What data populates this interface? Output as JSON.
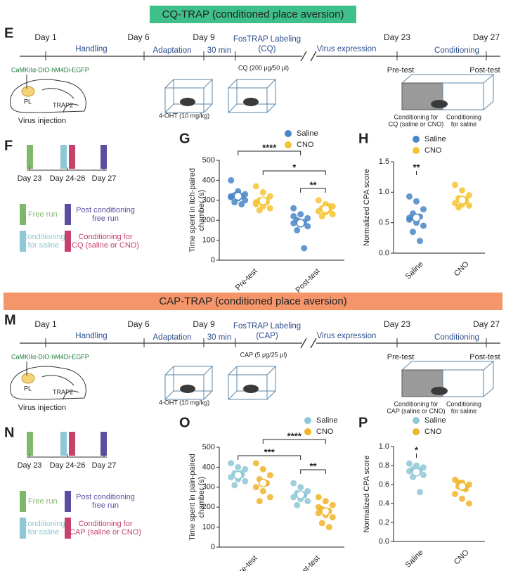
{
  "sections": [
    {
      "banner": "CQ-TRAP (conditioned place aversion)",
      "timeline": {
        "label": "E",
        "days": [
          "Day 1",
          "Day 6",
          "Day 9",
          "Day 23",
          "Day 27"
        ],
        "phases": [
          "Handling",
          "Adaptation",
          "30 min",
          "FosTRAP Labeling",
          "(CQ)",
          "Virus expression",
          "Conditioning"
        ],
        "construct": "CaMKIIα-DIO-hM4Di-EGFP",
        "region": "PL",
        "mouse": "TRAP2",
        "injection": "Virus injection",
        "drug1": "4-OHT (10 mg/kg)",
        "drug2": "CQ (200 μg/50 μl)",
        "pretest": "Pre-test",
        "posttest": "Post-test",
        "cond1": [
          "Conditioning for",
          "CQ (saline or CNO)"
        ],
        "cond2": [
          "Conditioning",
          "for saline"
        ]
      },
      "schedule": {
        "label": "F",
        "days": [
          "Day 23",
          "Day 24-26",
          "Day 27"
        ],
        "legend": [
          [
            "Free run"
          ],
          [
            "Post conditioning",
            "free run"
          ],
          [
            "Conditioning",
            "for saline"
          ],
          [
            "Conditioning for",
            "CQ (saline or CNO)"
          ]
        ]
      }
    },
    {
      "banner": "CAP-TRAP (conditioned place aversion)",
      "timeline": {
        "label": "M",
        "days": [
          "Day 1",
          "Day 6",
          "Day 9",
          "Day 23",
          "Day 27"
        ],
        "phases": [
          "Handling",
          "Adaptation",
          "30 min",
          "FosTRAP Labeling",
          "(CAP)",
          "Virus expression",
          "Conditioning"
        ],
        "construct": "CaMKIIα-DIO-hM4Di-EGFP",
        "region": "PL",
        "mouse": "TRAP2",
        "injection": "Virus injection",
        "drug1": "4-OHT (10 mg/kg)",
        "drug2": "CAP (5 μg/25 μl)",
        "pretest": "Pre-test",
        "posttest": "Post-test",
        "cond1": [
          "Conditioning for",
          "CAP (saline or CNO)"
        ],
        "cond2": [
          "Conditioning",
          "for saline"
        ]
      },
      "schedule": {
        "label": "N",
        "days": [
          "Day 23",
          "Day 24-26",
          "Day 27"
        ],
        "legend": [
          [
            "Free run"
          ],
          [
            "Post conditioning",
            "free run"
          ],
          [
            "Conditioning",
            "for saline"
          ],
          [
            "Conditioning for",
            "CAP (saline or CNO)"
          ]
        ]
      }
    }
  ],
  "chart_data": [
    {
      "type": "strip",
      "label": "G",
      "y_label": [
        "Time spent in itch-paired",
        "chamber (s)"
      ],
      "categories": [
        "Pre-test",
        "Post-test"
      ],
      "ylim": [
        0,
        500
      ],
      "yticks": [
        0,
        100,
        200,
        300,
        400,
        500
      ],
      "series": [
        {
          "name": "Saline",
          "color": "#4a86c5",
          "values": [
            [
              400,
              345,
              330,
              325,
              320,
              315,
              310,
              300,
              290,
              280,
              320,
              330
            ],
            [
              260,
              230,
              210,
              200,
              190,
              185,
              180,
              170,
              150,
              60,
              220
            ]
          ],
          "means": [
            320,
            186
          ]
        },
        {
          "name": "CNO",
          "color": "#f4c430",
          "values": [
            [
              370,
              340,
              320,
              300,
              290,
              280,
              270,
              260,
              250,
              300,
              290
            ],
            [
              300,
              280,
              270,
              260,
              250,
              245,
              240,
              230,
              220,
              270
            ]
          ],
          "means": [
            297,
            256
          ]
        }
      ],
      "annotations": [
        "****",
        "*",
        "**"
      ]
    },
    {
      "type": "strip",
      "label": "H",
      "y_label": [
        "Normalized CPA score"
      ],
      "categories": [
        "Saline",
        "CNO"
      ],
      "ylim": [
        0,
        1.5
      ],
      "yticks": [
        {
          "value": 0,
          "label": "0.0"
        },
        {
          "value": 0.5,
          "label": "0.5"
        },
        {
          "value": 1,
          "label": "1.0"
        },
        {
          "value": 1.5,
          "label": "1.5"
        }
      ],
      "series": [
        {
          "name": "Saline",
          "color": "#4a86c5",
          "values": [
            [
              0.93,
              0.85,
              0.72,
              0.65,
              0.6,
              0.55,
              0.5,
              0.45,
              0.35,
              0.2,
              0.58
            ]
          ],
          "means": [
            0.58
          ]
        },
        {
          "name": "CNO",
          "color": "#f4c430",
          "values": [
            [
              1.12,
              1.03,
              0.95,
              0.9,
              0.85,
              0.82,
              0.8,
              0.78,
              0.75,
              0.88
            ]
          ],
          "means": [
            0.87
          ]
        }
      ],
      "annotations": [
        "**"
      ]
    },
    {
      "type": "strip",
      "label": "O",
      "y_label": [
        "Time spent in pain-paired",
        "chamber (s)"
      ],
      "categories": [
        "Pre-test",
        "ost-test"
      ],
      "ylim": [
        0,
        500
      ],
      "yticks": [
        0,
        100,
        200,
        300,
        400,
        500
      ],
      "series": [
        {
          "name": "Saline",
          "color": "#8fc7d6",
          "values": [
            [
              420,
              400,
              390,
              370,
              360,
              350,
              340,
              330,
              310,
              370
            ],
            [
              320,
              300,
              280,
              270,
              260,
              250,
              240,
              230,
              210,
              260
            ]
          ],
          "means": [
            360,
            262
          ]
        },
        {
          "name": "CNO",
          "color": "#f0b429",
          "values": [
            [
              420,
              390,
              360,
              340,
              320,
              300,
              280,
              250,
              230,
              320
            ],
            [
              250,
              230,
              210,
              190,
              180,
              170,
              160,
              150,
              120,
              100,
              200
            ]
          ],
          "means": [
            321,
            178
          ]
        }
      ],
      "annotations": [
        "***",
        "****",
        "**"
      ]
    },
    {
      "type": "strip",
      "label": "P",
      "y_label": [
        "Normalized CPA score"
      ],
      "categories": [
        "Saline",
        "CNO"
      ],
      "ylim": [
        0,
        1
      ],
      "yticks": [
        {
          "value": 0,
          "label": "0.0"
        },
        {
          "value": 0.2,
          "label": "0.2"
        },
        {
          "value": 0.4,
          "label": "0.4"
        },
        {
          "value": 0.6,
          "label": "0.6"
        },
        {
          "value": 0.8,
          "label": "0.8"
        },
        {
          "value": 1,
          "label": "1.0"
        }
      ],
      "series": [
        {
          "name": "Saline",
          "color": "#8fc7d6",
          "values": [
            [
              0.82,
              0.8,
              0.78,
              0.76,
              0.75,
              0.74,
              0.72,
              0.7,
              0.68,
              0.52
            ]
          ],
          "means": [
            0.73
          ]
        },
        {
          "name": "CNO",
          "color": "#f0b429",
          "values": [
            [
              0.65,
              0.62,
              0.6,
              0.58,
              0.55,
              0.5,
              0.45,
              0.4,
              0.62,
              0.57
            ]
          ],
          "means": [
            0.58
          ]
        }
      ],
      "annotations": [
        "*"
      ]
    }
  ]
}
